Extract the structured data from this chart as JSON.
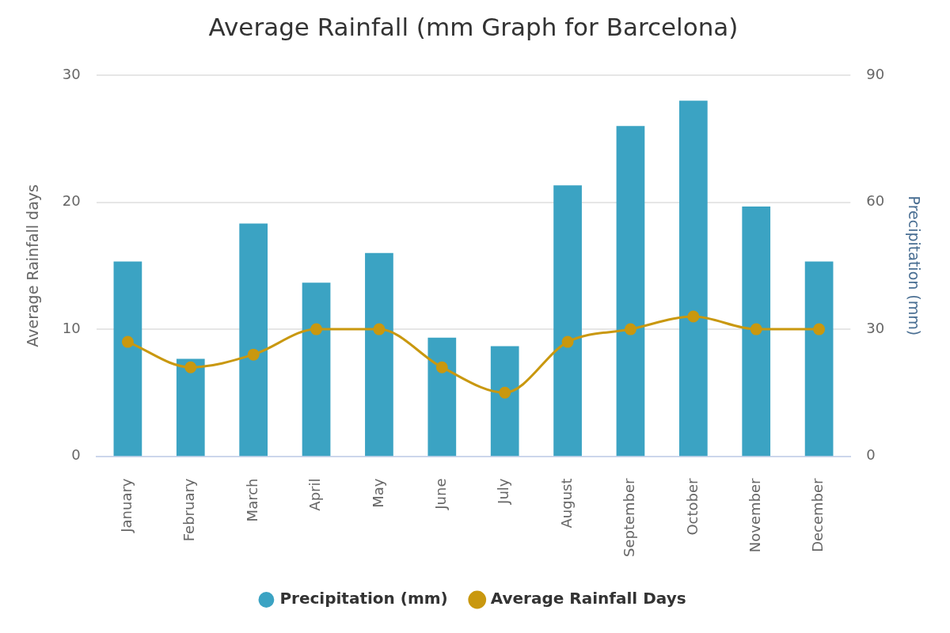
{
  "chart_data": {
    "type": "bar",
    "title": "Average Rainfall (mm Graph for Barcelona)",
    "ylabel": "Average Rainfall days",
    "y2label": "Precipitation (mm)",
    "categories": [
      "January",
      "February",
      "March",
      "April",
      "May",
      "June",
      "July",
      "August",
      "September",
      "October",
      "November",
      "December"
    ],
    "series": [
      {
        "name": "Precipitation (mm)",
        "axis": "y2",
        "color": "#3ba3c3",
        "values": [
          46,
          23,
          55,
          41,
          48,
          28,
          26,
          64,
          78,
          84,
          59,
          46
        ]
      },
      {
        "name": "Average Rainfall Days",
        "type": "line",
        "color": "#c9980f",
        "marker": "circle",
        "values": [
          9,
          7,
          8,
          10,
          10,
          7,
          5,
          9,
          10,
          11,
          10,
          10
        ]
      }
    ],
    "ylim": [
      0,
      30
    ],
    "yticks": [
      0,
      10,
      20,
      30
    ],
    "y2lim": [
      0,
      90
    ],
    "y2ticks": [
      0,
      30,
      60,
      90
    ],
    "grid": "y",
    "legend": "bottom"
  }
}
